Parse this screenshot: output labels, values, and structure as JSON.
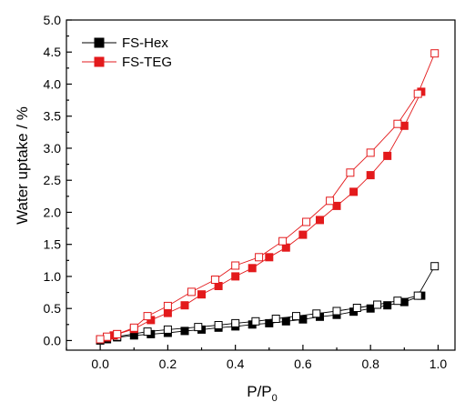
{
  "chart_data": {
    "type": "scatter",
    "title": "",
    "xlabel": "P/P",
    "xlabel_sub": "0",
    "ylabel": "Water uptake / %",
    "xlim": [
      -0.1,
      1.05
    ],
    "ylim": [
      -0.15,
      5.0
    ],
    "x_ticks": [
      "0.0",
      "0.2",
      "0.4",
      "0.6",
      "0.8",
      "1.0"
    ],
    "y_ticks": [
      "0.0",
      "0.5",
      "1.0",
      "1.5",
      "2.0",
      "2.5",
      "3.0",
      "3.5",
      "4.0",
      "4.5",
      "5.0"
    ],
    "grid": false,
    "legend_position": "top-left",
    "series": [
      {
        "name": "FS-Hex",
        "color": "#000000",
        "adsorption": {
          "x": [
            0.0,
            0.02,
            0.05,
            0.1,
            0.15,
            0.2,
            0.25,
            0.3,
            0.35,
            0.4,
            0.45,
            0.5,
            0.55,
            0.6,
            0.65,
            0.7,
            0.75,
            0.8,
            0.85,
            0.9,
            0.95
          ],
          "y": [
            0.0,
            0.02,
            0.05,
            0.08,
            0.1,
            0.12,
            0.15,
            0.17,
            0.2,
            0.22,
            0.25,
            0.27,
            0.3,
            0.33,
            0.37,
            0.4,
            0.45,
            0.5,
            0.55,
            0.6,
            0.7
          ]
        },
        "desorption": {
          "x": [
            0.99,
            0.94,
            0.88,
            0.82,
            0.76,
            0.7,
            0.64,
            0.58,
            0.52,
            0.46,
            0.4,
            0.35,
            0.29,
            0.2,
            0.14,
            0.05,
            0.0
          ],
          "y": [
            1.16,
            0.7,
            0.62,
            0.56,
            0.51,
            0.46,
            0.42,
            0.38,
            0.34,
            0.3,
            0.27,
            0.24,
            0.21,
            0.17,
            0.14,
            0.06,
            0.01
          ]
        }
      },
      {
        "name": "FS-TEG",
        "color": "#e31a1c",
        "adsorption": {
          "x": [
            0.0,
            0.02,
            0.04,
            0.05,
            0.1,
            0.15,
            0.2,
            0.25,
            0.3,
            0.35,
            0.4,
            0.45,
            0.5,
            0.55,
            0.6,
            0.65,
            0.7,
            0.75,
            0.8,
            0.85,
            0.9,
            0.95
          ],
          "y": [
            0.02,
            0.05,
            0.08,
            0.1,
            0.18,
            0.32,
            0.43,
            0.55,
            0.72,
            0.85,
            1.0,
            1.13,
            1.3,
            1.45,
            1.65,
            1.88,
            2.1,
            2.32,
            2.58,
            2.88,
            3.35,
            3.88
          ]
        },
        "desorption": {
          "x": [
            0.99,
            0.94,
            0.88,
            0.8,
            0.74,
            0.68,
            0.61,
            0.54,
            0.47,
            0.4,
            0.34,
            0.27,
            0.2,
            0.14,
            0.1,
            0.05,
            0.02,
            0.0
          ],
          "y": [
            4.48,
            3.85,
            3.38,
            2.93,
            2.62,
            2.18,
            1.85,
            1.55,
            1.3,
            1.17,
            0.95,
            0.76,
            0.54,
            0.38,
            0.2,
            0.1,
            0.06,
            0.02
          ]
        }
      }
    ]
  }
}
